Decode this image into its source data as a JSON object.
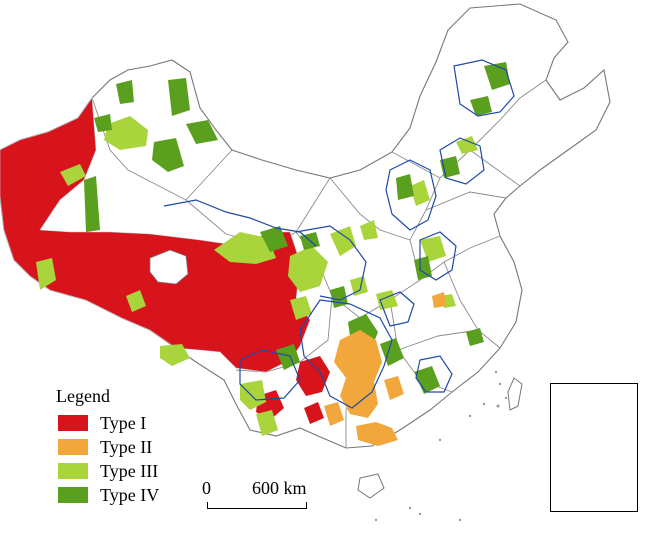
{
  "legend": {
    "title": "Legend",
    "items": [
      {
        "label": "Type I",
        "color": "#d7141c"
      },
      {
        "label": "Type II",
        "color": "#f2a73c"
      },
      {
        "label": "Type III",
        "color": "#a9d43c"
      },
      {
        "label": "Type IV",
        "color": "#5aa01e"
      }
    ]
  },
  "scale_bar": {
    "zero_label": "0",
    "distance_label": "600 km"
  },
  "colors": {
    "province_border": "#8a8a8a",
    "highlight_border": "#1f49a8",
    "background": "#ffffff"
  }
}
